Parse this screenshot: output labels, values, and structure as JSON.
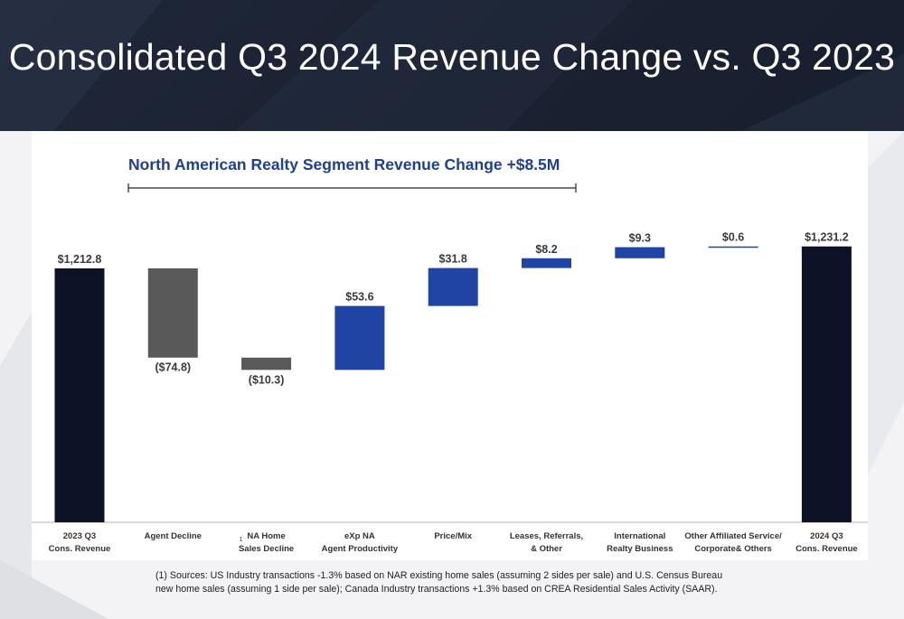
{
  "slide": {
    "title": "Consolidated Q3 2024 Revenue Change vs. Q3 2023",
    "segment_title": "North American Realty Segment Revenue Change +$8.5M",
    "footnote_line1": "(1) Sources: US Industry transactions -1.3% based on NAR existing home sales (assuming 2 sides per sale) and U.S. Census Bureau",
    "footnote_line2": "new home sales (assuming 1 side per sale); Canada Industry transactions +1.3% based on CREA Residential Sales Activity (SAAR)."
  },
  "colors": {
    "total": "#0e1226",
    "decrease": "#595959",
    "increase": "#1f44a3",
    "header_bg": "#1a2232",
    "segment_title": "#1f3f8f"
  },
  "chart_data": {
    "type": "waterfall",
    "title": "North American Realty Segment Revenue Change +$8.5M",
    "xlabel": "",
    "ylabel": "",
    "bracket_spans": [
      "Agent Decline",
      "NA Home Sales Decline",
      "eXp NA Agent Productivity",
      "Price/Mix",
      "Leases, Referrals, & Other"
    ],
    "categories": [
      {
        "line1": "2023 Q3",
        "line2": "Cons. Revenue",
        "marker": ""
      },
      {
        "line1": "Agent Decline",
        "line2": "",
        "marker": ""
      },
      {
        "line1": "NA Home",
        "line2": "Sales Decline",
        "marker": "1"
      },
      {
        "line1": "eXp NA",
        "line2": "Agent Productivity",
        "marker": ""
      },
      {
        "line1": "Price/Mix",
        "line2": "",
        "marker": ""
      },
      {
        "line1": "Leases, Referrals,",
        "line2": "& Other",
        "marker": ""
      },
      {
        "line1": "International",
        "line2": "Realty Business",
        "marker": ""
      },
      {
        "line1": "Other Affiliated Service/",
        "line2": "Corporate& Others",
        "marker": ""
      },
      {
        "line1": "2024 Q3",
        "line2": "Cons. Revenue",
        "marker": ""
      }
    ],
    "values": [
      1212.8,
      -74.8,
      -10.3,
      53.6,
      31.8,
      8.2,
      9.3,
      0.6,
      1231.2
    ],
    "kinds": [
      "total",
      "decrease",
      "decrease",
      "increase",
      "increase",
      "increase",
      "increase",
      "increase",
      "total"
    ],
    "labels": [
      "$1,212.8",
      "($74.8)",
      "($10.3)",
      "$53.6",
      "$31.8",
      "$8.2",
      "$9.3",
      "$0.6",
      "$1,231.2"
    ]
  }
}
